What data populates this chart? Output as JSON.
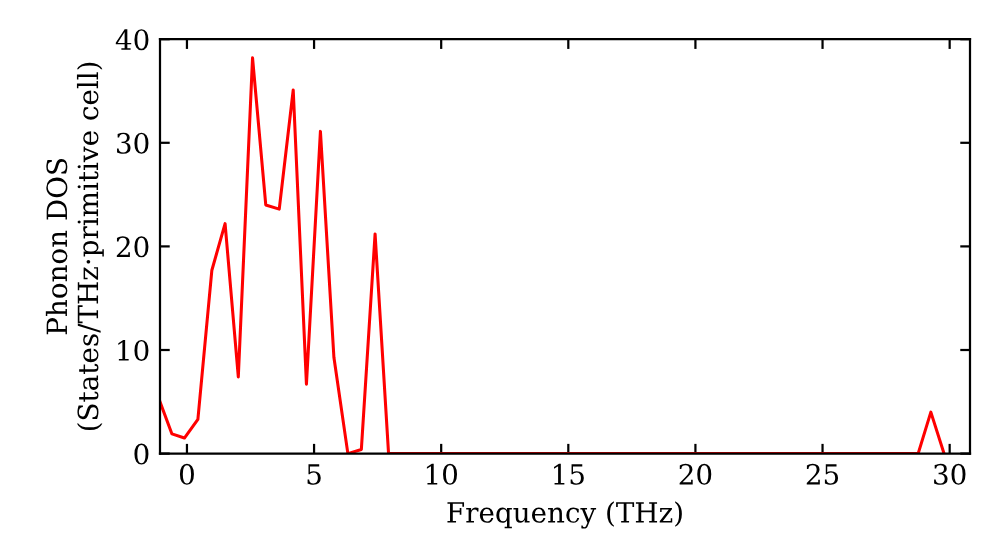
{
  "chart_data": {
    "type": "line",
    "xlabel": "Frequency (THz)",
    "ylabel": "Phonon DOS\n(States/THz·primitive cell)",
    "x": [
      -1.06,
      -0.59,
      -0.1,
      0.43,
      0.98,
      1.5,
      2.02,
      2.58,
      3.1,
      3.63,
      4.18,
      4.7,
      5.25,
      5.78,
      6.33,
      6.86,
      7.4,
      7.93,
      28.76,
      29.26,
      29.78
    ],
    "series": [
      {
        "color": "#ff0000",
        "values": [
          5.0,
          1.9,
          1.5,
          3.3,
          17.7,
          22.2,
          7.4,
          38.2,
          24.0,
          23.6,
          35.1,
          6.7,
          31.1,
          9.3,
          0,
          0.4,
          21.2,
          0,
          0,
          4.0,
          0
        ]
      }
    ],
    "xlim": [
      -1.06,
      30.8
    ],
    "ylim": [
      0,
      40
    ],
    "xticks": [
      0,
      5,
      10,
      15,
      20,
      25,
      30
    ],
    "yticks": [
      0,
      10,
      20,
      30,
      40
    ],
    "grid": false,
    "legend": false,
    "marker": "none",
    "line_style": "solid"
  }
}
